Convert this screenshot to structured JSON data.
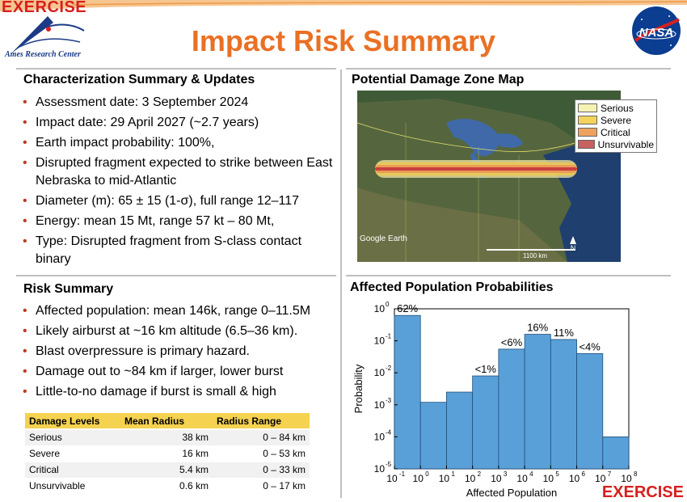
{
  "header": {
    "exercise_top": "EXERCISE",
    "ames_label": "Ames Research Center",
    "title": "Impact Risk Summary",
    "nasa_label": "NASA",
    "exercise_bottom": "EXERCISE"
  },
  "characterization": {
    "title": "Characterization Summary & Updates",
    "bullets": [
      "Assessment date: 3 September 2024",
      "Impact date:  29 April 2027 (~2.7 years)",
      "Earth impact probability: 100%,",
      "Disrupted fragment expected to strike between East Nebraska to mid-Atlantic",
      "Diameter (m): 65 ± 15 (1-σ), full range 12–117",
      "Energy: mean 15 Mt, range 57 kt – 80 Mt,",
      "Type: Disrupted fragment from S-class contact binary"
    ]
  },
  "map": {
    "title": "Potential Damage Zone Map",
    "legend": [
      {
        "label": "Serious",
        "color": "#f6f3b2"
      },
      {
        "label": "Severe",
        "color": "#f3d35c"
      },
      {
        "label": "Critical",
        "color": "#eea25e"
      },
      {
        "label": "Unsurvivable",
        "color": "#c9605f"
      }
    ],
    "google_earth": "Google Earth",
    "scale": "1100 km",
    "north": "N"
  },
  "risk": {
    "title": "Risk Summary",
    "bullets": [
      "Affected population: mean 146k, range 0–11.5M",
      "Likely airburst at ~16 km altitude (6.5–36 km).",
      "Blast overpressure is primary hazard.",
      "Damage out to ~84 km if larger, lower burst",
      "Little-to-no damage if burst is small & high"
    ]
  },
  "damage_table": {
    "headers": [
      "Damage Levels",
      "Mean Radius",
      "Radius Range"
    ],
    "rows": [
      [
        "Serious",
        "38 km",
        "0 – 84 km"
      ],
      [
        "Severe",
        "16 km",
        "0 – 53 km"
      ],
      [
        "Critical",
        "5.4 km",
        "0 – 33 km"
      ],
      [
        "Unsurvivable",
        "0.6 km",
        "0 – 17 km"
      ]
    ]
  },
  "chart_data": {
    "type": "bar",
    "title": "Affected Population Probabilities",
    "xlabel": "Affected Population",
    "ylabel": "Probability",
    "x_scale": "log",
    "y_scale": "log",
    "xlim": [
      0.1,
      100000000
    ],
    "ylim": [
      1e-05,
      1
    ],
    "bin_edges": [
      0.1,
      1,
      10,
      100,
      1000,
      10000,
      100000,
      1000000,
      10000000,
      100000000
    ],
    "values": [
      0.62,
      0.0012,
      0.0025,
      0.008,
      0.055,
      0.16,
      0.11,
      0.04,
      0.0001
    ],
    "bar_labels": [
      "62%",
      "",
      "",
      "<1%",
      "<6%",
      "16%",
      "11%",
      "<4%",
      ""
    ],
    "xtick_exponents": [
      -1,
      0,
      1,
      2,
      3,
      4,
      5,
      6,
      7,
      8
    ],
    "ytick_exponents": [
      -5,
      -4,
      -3,
      -2,
      -1,
      0
    ],
    "bar_color": "#5aa0d8",
    "grid": false
  }
}
